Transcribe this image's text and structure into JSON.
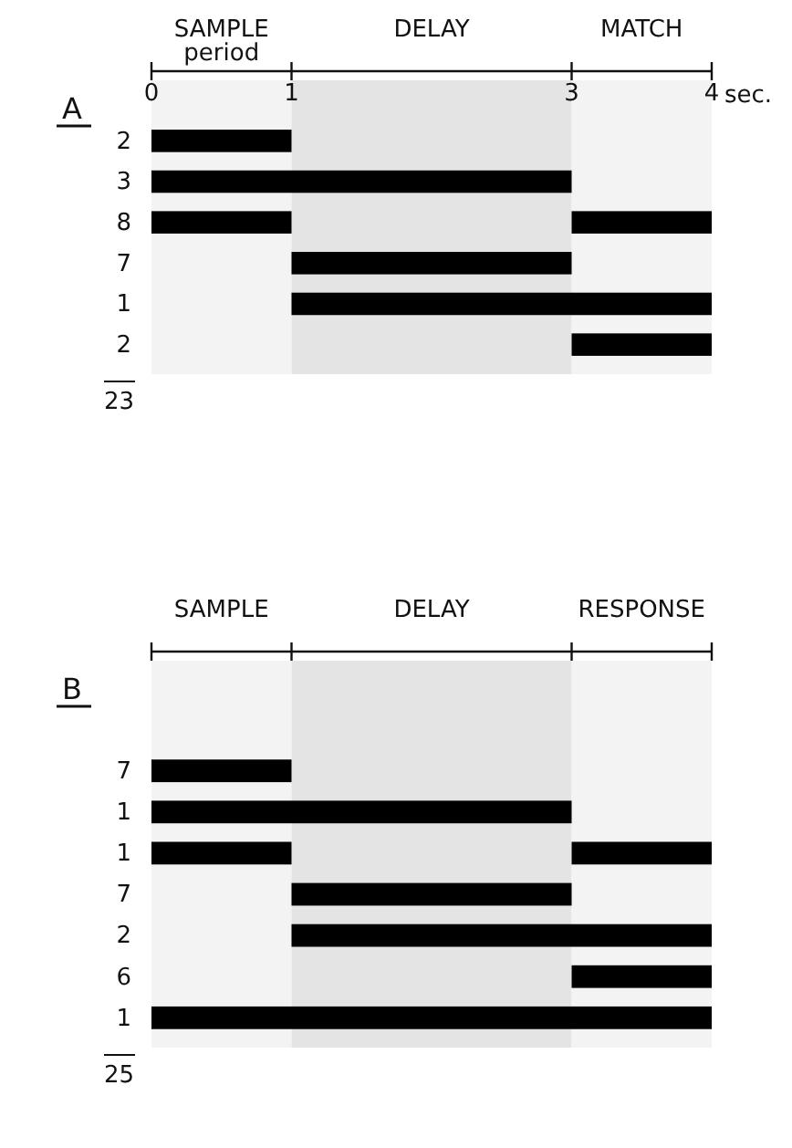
{
  "chart_data": [
    {
      "type": "bar",
      "orientation": "horizontal",
      "title": "A",
      "categories": [
        "2",
        "3",
        "8",
        "7",
        "1",
        "2"
      ],
      "series": [
        {
          "color": "#000000",
          "values": [
            1,
            3,
            1,
            2,
            3,
            1
          ],
          "base": [
            0,
            0,
            0,
            1,
            1,
            3
          ]
        },
        {
          "color": "#000000",
          "values": [
            null,
            null,
            1,
            null,
            null,
            null
          ],
          "base": [
            null,
            null,
            3,
            null,
            null,
            null
          ]
        }
      ],
      "xlim": [
        0,
        4
      ],
      "xticks": [
        0,
        1,
        3,
        4
      ],
      "xlabel": "sec.",
      "bands": [
        {
          "axis": "x",
          "from": 0,
          "to": 1,
          "label": "SAMPLE period",
          "color": "#f3f3f3"
        },
        {
          "axis": "x",
          "from": 1,
          "to": 3,
          "label": "DELAY",
          "color": "#e4e4e4"
        },
        {
          "axis": "x",
          "from": 3,
          "to": 4,
          "label": "MATCH",
          "color": "#f3f3f3"
        }
      ],
      "annotations": [
        "23"
      ]
    },
    {
      "type": "bar",
      "orientation": "horizontal",
      "title": "B",
      "categories": [
        "7",
        "1",
        "1",
        "7",
        "2",
        "6",
        "1"
      ],
      "series": [
        {
          "color": "#000000",
          "values": [
            1,
            3,
            1,
            2,
            3,
            1,
            4
          ],
          "base": [
            0,
            0,
            0,
            1,
            1,
            3,
            0
          ]
        },
        {
          "color": "#000000",
          "values": [
            null,
            null,
            1,
            null,
            null,
            null,
            null
          ],
          "base": [
            null,
            null,
            3,
            null,
            null,
            null,
            null
          ]
        }
      ],
      "xlim": [
        0,
        4
      ],
      "xticks": [
        0,
        1,
        3,
        4
      ],
      "tick_labels": "y",
      "bands": [
        {
          "axis": "x",
          "from": 0,
          "to": 1,
          "label": "SAMPLE",
          "color": "#f3f3f3"
        },
        {
          "axis": "x",
          "from": 1,
          "to": 3,
          "label": "DELAY",
          "color": "#e4e4e4"
        },
        {
          "axis": "x",
          "from": 3,
          "to": 4,
          "label": "RESPONSE",
          "color": "#f3f3f3"
        }
      ],
      "annotations": [
        "25"
      ]
    }
  ]
}
